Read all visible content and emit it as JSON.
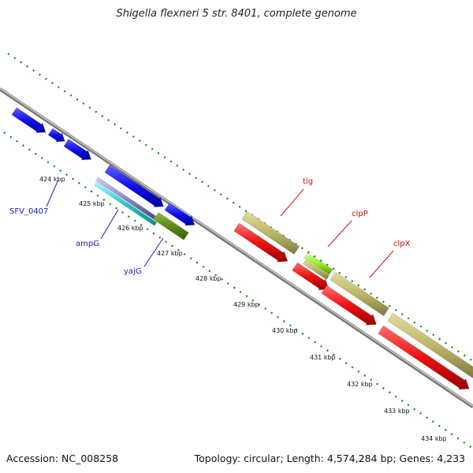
{
  "title": "Shigella flexneri 5 str. 8401, complete genome",
  "footer": {
    "accession": "Accession: NC_008258",
    "topology": "Topology: circular; Length: 4,574,284 bp; Genes: 4,233"
  },
  "scale_ticks": [
    "424 kbp",
    "425 kbp",
    "426 kbp",
    "427 kbp",
    "428 kbp",
    "429 kbp",
    "430 kbp",
    "431 kbp",
    "432 kbp",
    "433 kbp",
    "434 kbp"
  ],
  "gene_labels": [
    {
      "id": "SFV_0407",
      "text": "SFV_0407",
      "color": "#1a1acc"
    },
    {
      "id": "ampG",
      "text": "ampG",
      "color": "#1a1acc"
    },
    {
      "id": "yajG",
      "text": "yajG",
      "color": "#1a1acc"
    },
    {
      "id": "tig",
      "text": "tig",
      "color": "#d01010"
    },
    {
      "id": "clpP",
      "text": "clpP",
      "color": "#d01010"
    },
    {
      "id": "clpX",
      "text": "clpX",
      "color": "#d01010"
    }
  ],
  "colors": {
    "backbone": "#999999",
    "tick_dots": "#1f7f1f",
    "gene_blue": "#1010ee",
    "gene_cyan": "#22cccc",
    "gene_purple": "#8888cc",
    "gene_olive": "#5f8a1a",
    "gene_khaki": "#bdb76b",
    "gene_lime": "#99ee22",
    "gene_red": "#ee1111"
  }
}
